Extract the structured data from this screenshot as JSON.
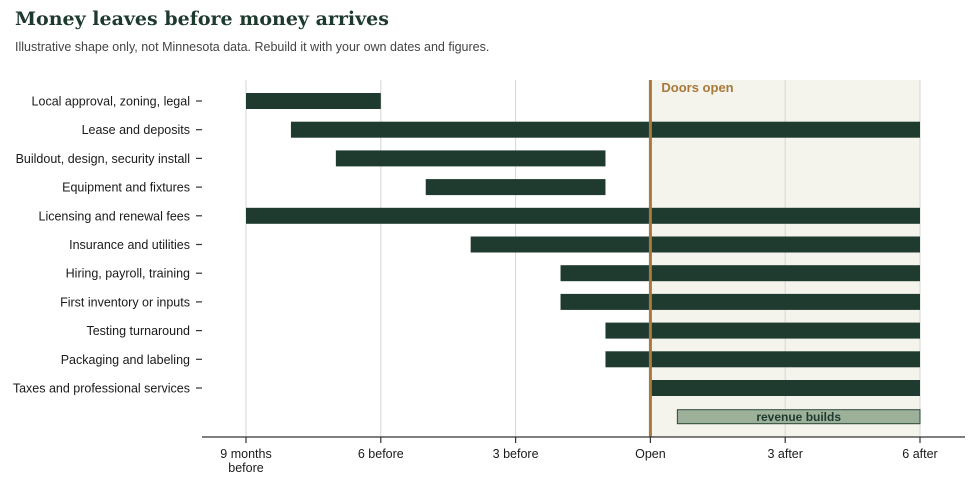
{
  "header": {
    "title": "Money leaves before money arrives",
    "subtitle": "Illustrative shape only, not Minnesota data. Rebuild it with your own dates and figures."
  },
  "colors": {
    "bar": "#1f3a2f",
    "marker": "#a8793a",
    "after_shade": "#f4f3ec",
    "revenue_fill": "#9db09a",
    "revenue_stroke": "#2a4a3a",
    "grid": "#d6d6d6",
    "axis": "#333333"
  },
  "chart_data": {
    "type": "gantt",
    "x_unit": "months relative to opening",
    "xlim": [
      -9,
      6
    ],
    "ticks": [
      {
        "value": -9,
        "label": [
          "9 months",
          "before"
        ]
      },
      {
        "value": -6,
        "label": [
          "6 before"
        ]
      },
      {
        "value": -3,
        "label": [
          "3 before"
        ]
      },
      {
        "value": 0,
        "label": [
          "Open"
        ]
      },
      {
        "value": 3,
        "label": [
          "3 after"
        ]
      },
      {
        "value": 6,
        "label": [
          "6 after"
        ]
      }
    ],
    "tasks": [
      {
        "label": "Local approval, zoning, legal",
        "start": -9,
        "end": -6
      },
      {
        "label": "Lease and deposits",
        "start": -8,
        "end": 6
      },
      {
        "label": "Buildout, design, security install",
        "start": -7,
        "end": -1
      },
      {
        "label": "Equipment and fixtures",
        "start": -5,
        "end": -1
      },
      {
        "label": "Licensing and renewal fees",
        "start": -9,
        "end": 6
      },
      {
        "label": "Insurance and utilities",
        "start": -4,
        "end": 6
      },
      {
        "label": "Hiring, payroll, training",
        "start": -2,
        "end": 6
      },
      {
        "label": "First inventory or inputs",
        "start": -2,
        "end": 6
      },
      {
        "label": "Testing turnaround",
        "start": -1,
        "end": 6
      },
      {
        "label": "Packaging and labeling",
        "start": -1,
        "end": 6
      },
      {
        "label": "Taxes and professional services",
        "start": 0,
        "end": 6
      }
    ],
    "marker": {
      "value": 0,
      "label": "Doors open"
    },
    "shaded_after": {
      "start": 0,
      "end": 6
    },
    "revenue": {
      "start": 0.6,
      "end": 6,
      "label": "revenue builds"
    },
    "grid": true
  }
}
